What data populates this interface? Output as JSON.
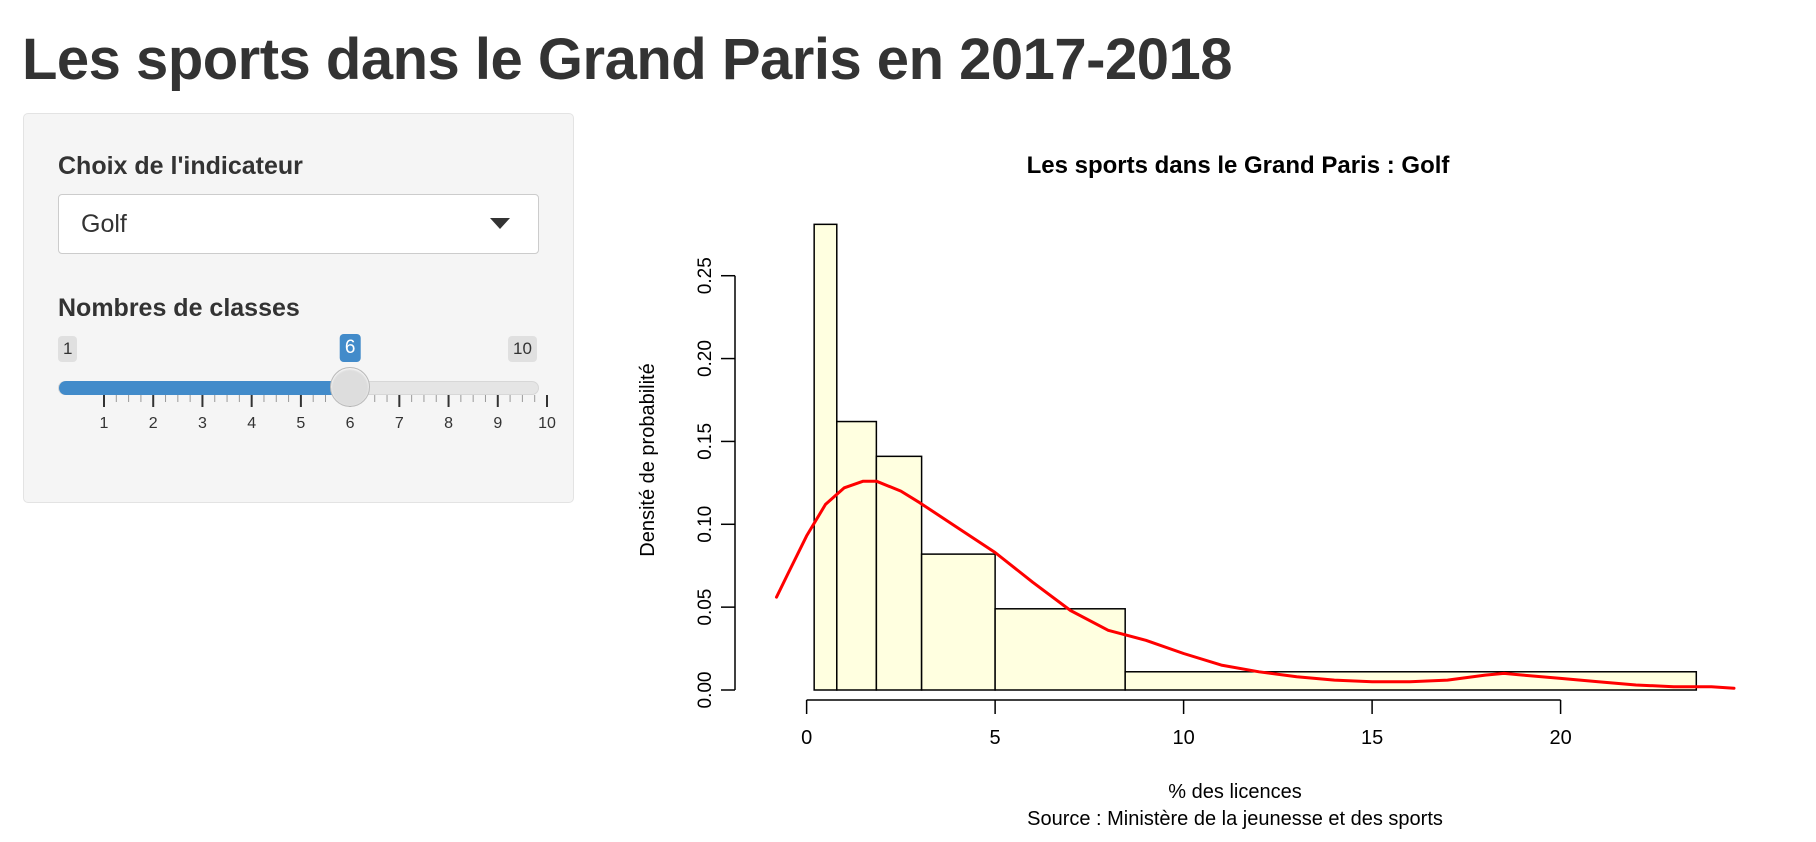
{
  "page": {
    "title": "Les sports dans le Grand Paris en 2017-2018"
  },
  "sidebar": {
    "indicator": {
      "label": "Choix de l'indicateur",
      "selected": "Golf"
    },
    "classes": {
      "label": "Nombres de classes",
      "min": 1,
      "max": 10,
      "value": 6,
      "min_text": "1",
      "max_text": "10",
      "value_text": "6",
      "tick_labels": [
        "1",
        "2",
        "3",
        "4",
        "5",
        "6",
        "7",
        "8",
        "9",
        "10"
      ]
    }
  },
  "colors": {
    "accent": "#428bca",
    "bar_fill": "#ffffe0",
    "density_line": "#ff0000"
  },
  "chart_data": {
    "type": "histogram",
    "title": "Les sports dans le Grand Paris :  Golf",
    "xlabel": "% des licences",
    "ylabel": "Densité de probabilité",
    "caption": "Source : Ministère de la jeunesse et des sports",
    "xlim": [
      -1.9,
      24.6
    ],
    "ylim": [
      0,
      0.28
    ],
    "x_ticks": [
      0,
      5,
      10,
      15,
      20
    ],
    "y_ticks": [
      0.0,
      0.05,
      0.1,
      0.15,
      0.2,
      0.25
    ],
    "y_tick_labels": [
      "0.00",
      "0.05",
      "0.10",
      "0.15",
      "0.20",
      "0.25"
    ],
    "bins": [
      {
        "start": 0.2,
        "end": 0.8,
        "density": 0.281
      },
      {
        "start": 0.8,
        "end": 1.85,
        "density": 0.162
      },
      {
        "start": 1.85,
        "end": 3.05,
        "density": 0.141
      },
      {
        "start": 3.05,
        "end": 5.0,
        "density": 0.082
      },
      {
        "start": 5.0,
        "end": 8.45,
        "density": 0.049
      },
      {
        "start": 8.45,
        "end": 23.6,
        "density": 0.011
      }
    ],
    "density_curve": {
      "x": [
        -0.8,
        -0.5,
        0.0,
        0.5,
        1.0,
        1.5,
        1.85,
        2.5,
        3.0,
        4.0,
        5.0,
        6.0,
        7.0,
        8.0,
        9.0,
        10.0,
        11.0,
        12.0,
        13.0,
        14.0,
        15.0,
        16.0,
        17.0,
        18.0,
        18.5,
        19.0,
        20.0,
        21.0,
        22.0,
        23.0,
        24.0,
        24.6
      ],
      "y": [
        0.056,
        0.07,
        0.093,
        0.112,
        0.122,
        0.126,
        0.126,
        0.12,
        0.113,
        0.098,
        0.083,
        0.065,
        0.048,
        0.036,
        0.03,
        0.022,
        0.015,
        0.011,
        0.008,
        0.006,
        0.005,
        0.005,
        0.006,
        0.009,
        0.01,
        0.009,
        0.007,
        0.005,
        0.003,
        0.002,
        0.002,
        0.001
      ]
    }
  }
}
